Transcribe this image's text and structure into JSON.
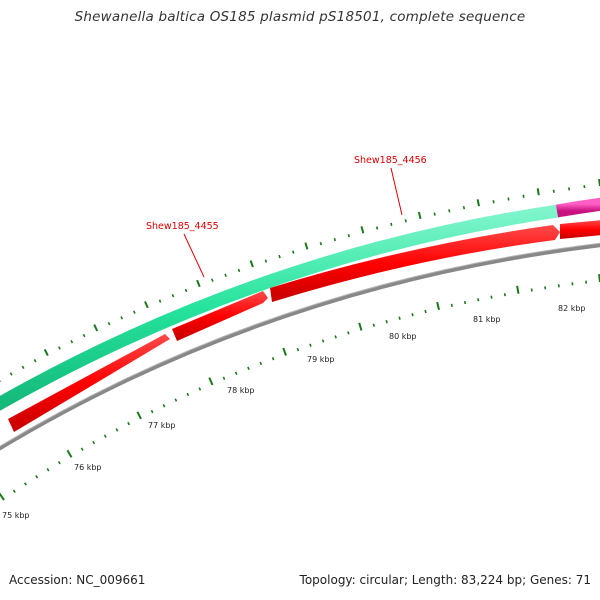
{
  "title": "Shewanella baltica OS185 plasmid pS18501, complete sequence",
  "footer": {
    "accession": "Accession: NC_009661",
    "stats": "Topology: circular; Length: 83,224 bp; Genes: 71"
  },
  "genes": [
    {
      "id": "Shew185_4455",
      "label": "Shew185_4455"
    },
    {
      "id": "Shew185_4456",
      "label": "Shew185_4456"
    }
  ],
  "kbp_ticks": [
    {
      "label": "75 kbp"
    },
    {
      "label": "76 kbp"
    },
    {
      "label": "77 kbp"
    },
    {
      "label": "78 kbp"
    },
    {
      "label": "79 kbp"
    },
    {
      "label": "80 kbp"
    },
    {
      "label": "81 kbp"
    },
    {
      "label": "82 kbp"
    }
  ],
  "colors": {
    "feature_track": "#2ee8a0",
    "feature_track_end": "#e0229c",
    "gene_forward": "#ff0000",
    "backbone": "#8a8a8a",
    "tick": "#1a7a1a",
    "gene_label": "#dd0000"
  }
}
